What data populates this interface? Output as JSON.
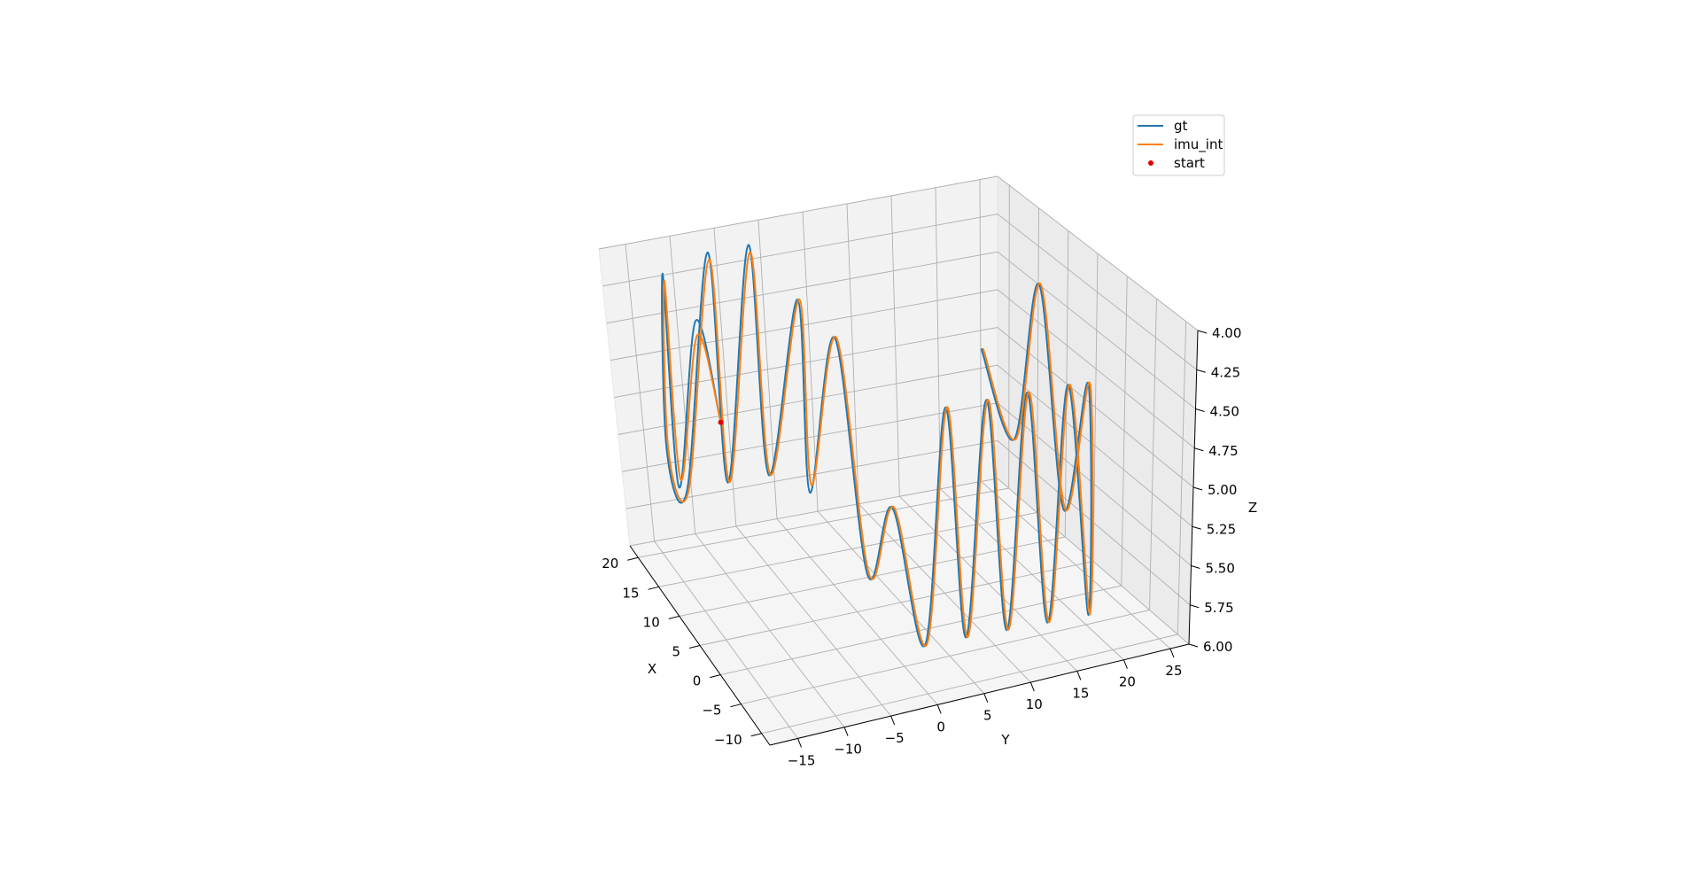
{
  "chart_data": {
    "type": "line",
    "projection": "3d",
    "title": "",
    "xlabel": "X",
    "ylabel": "Y",
    "zlabel": "Z",
    "xticks": [
      "20",
      "15",
      "10",
      "5",
      "0",
      "−5",
      "−10"
    ],
    "yticks": [
      "−15",
      "−10",
      "−5",
      "0",
      "5",
      "10",
      "15",
      "20",
      "25"
    ],
    "zticks": [
      "4.00",
      "4.25",
      "4.50",
      "4.75",
      "5.00",
      "5.25",
      "5.50",
      "5.75",
      "6.00"
    ],
    "xlim": [
      -12,
      22
    ],
    "ylim": [
      -18,
      27
    ],
    "zlim": [
      4.0,
      6.0
    ],
    "z_axis_inverted": true,
    "grid": true,
    "legend_position": "top-right",
    "series": [
      {
        "name": "gt",
        "color": "#1f77b4",
        "x": [
          3.9,
          10,
          14,
          18,
          20,
          20,
          20,
          20,
          20,
          20,
          17,
          14,
          8,
          0,
          -6,
          -10,
          -10,
          -10,
          -10,
          -10,
          -10,
          -10,
          -10,
          -10,
          -6,
          0,
          6,
          12,
          20
        ],
        "y": [
          -16,
          -16,
          -16,
          -16,
          -14.5,
          -12,
          -9.5,
          -7,
          -4.5,
          -2,
          0,
          0,
          0,
          0,
          0,
          2,
          4.5,
          7,
          9.5,
          12,
          14.5,
          17,
          19.5,
          22,
          24,
          24,
          24,
          24,
          24
        ],
        "z": [
          4.45,
          4.0,
          5.3,
          4.0,
          5.3,
          5.6,
          4.0,
          5.6,
          4.0,
          5.6,
          4.3,
          5.5,
          4.2,
          5.5,
          4.8,
          5.6,
          4.0,
          5.6,
          4.0,
          5.6,
          4.0,
          5.6,
          4.0,
          5.6,
          4.2,
          5.3,
          4.0,
          5.3,
          5.0
        ]
      },
      {
        "name": "imu_int",
        "color": "#ff7f0e",
        "x": [
          3.9,
          10,
          14,
          18,
          20,
          20,
          20,
          20,
          20,
          20,
          17,
          14,
          8,
          0,
          -6,
          -10,
          -10,
          -10,
          -10,
          -10,
          -10,
          -10,
          -10,
          -10,
          -6,
          0,
          6,
          12,
          20
        ],
        "y": [
          -16,
          -15.8,
          -15.8,
          -15.8,
          -14.3,
          -11.8,
          -9.3,
          -6.8,
          -4.3,
          -1.8,
          0.2,
          0.2,
          0.2,
          0.2,
          0.2,
          2.2,
          4.7,
          7.2,
          9.7,
          12.2,
          14.7,
          17.2,
          19.7,
          22.2,
          24.2,
          24.2,
          24.2,
          24.2,
          24.2
        ],
        "z": [
          4.45,
          4.1,
          5.25,
          4.05,
          5.3,
          5.6,
          4.05,
          5.6,
          4.05,
          5.6,
          4.3,
          5.45,
          4.2,
          5.5,
          4.8,
          5.6,
          4.0,
          5.6,
          4.0,
          5.6,
          4.0,
          5.6,
          4.0,
          5.6,
          4.2,
          5.3,
          4.0,
          5.3,
          5.0
        ]
      },
      {
        "name": "start",
        "color": "#e00000",
        "marker": "point",
        "x": [
          3.9
        ],
        "y": [
          -16
        ],
        "z": [
          4.45
        ]
      }
    ]
  }
}
